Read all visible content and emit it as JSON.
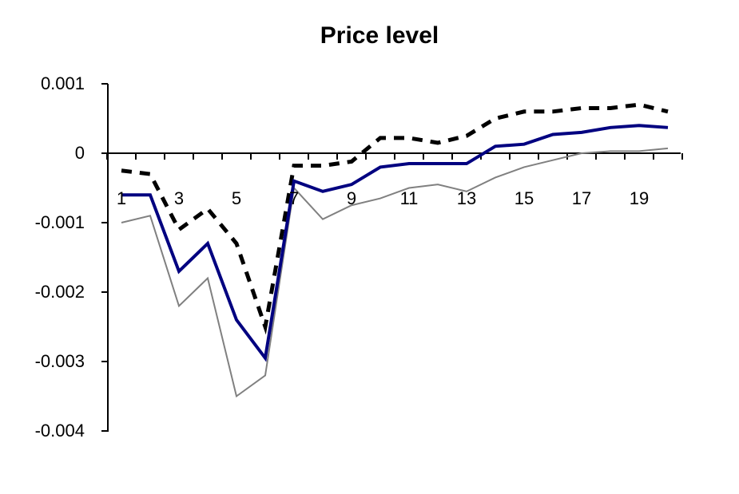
{
  "chart_data": {
    "type": "line",
    "title": "Price level",
    "xlabel": "",
    "ylabel": "",
    "x": [
      1,
      2,
      3,
      4,
      5,
      6,
      7,
      8,
      9,
      10,
      11,
      12,
      13,
      14,
      15,
      16,
      17,
      18,
      19,
      20
    ],
    "x_tick_labels": [
      "1",
      "3",
      "5",
      "7",
      "9",
      "11",
      "13",
      "15",
      "17",
      "19"
    ],
    "y_tick_labels": [
      "0.001",
      "0",
      "-0.001",
      "-0.002",
      "-0.003",
      "-0.004"
    ],
    "ylim": [
      -0.004,
      0.001
    ],
    "grid": false,
    "legend": "none",
    "series": [
      {
        "style": "dashed",
        "color": "#000000",
        "values": [
          -0.00025,
          -0.0003,
          -0.0011,
          -0.0008,
          -0.0013,
          -0.0025,
          -0.00018,
          -0.00018,
          -0.00012,
          0.00022,
          0.00022,
          0.00015,
          0.00025,
          0.0005,
          0.0006,
          0.0006,
          0.00065,
          0.00065,
          0.0007,
          0.0006
        ]
      },
      {
        "style": "solid-thick",
        "color": "#000080",
        "values": [
          -0.0006,
          -0.0006,
          -0.0017,
          -0.0013,
          -0.0024,
          -0.00295,
          -0.0004,
          -0.00055,
          -0.00045,
          -0.0002,
          -0.00015,
          -0.00015,
          -0.00015,
          0.0001,
          0.00013,
          0.00027,
          0.0003,
          0.00037,
          0.0004,
          0.00037
        ]
      },
      {
        "style": "solid-thin",
        "color": "#808080",
        "values": [
          -0.001,
          -0.0009,
          -0.0022,
          -0.0018,
          -0.0035,
          -0.0032,
          -0.0005,
          -0.00095,
          -0.00075,
          -0.00065,
          -0.0005,
          -0.00045,
          -0.00055,
          -0.00035,
          -0.0002,
          -0.0001,
          0.0,
          3e-05,
          3e-05,
          7e-05
        ]
      }
    ]
  }
}
